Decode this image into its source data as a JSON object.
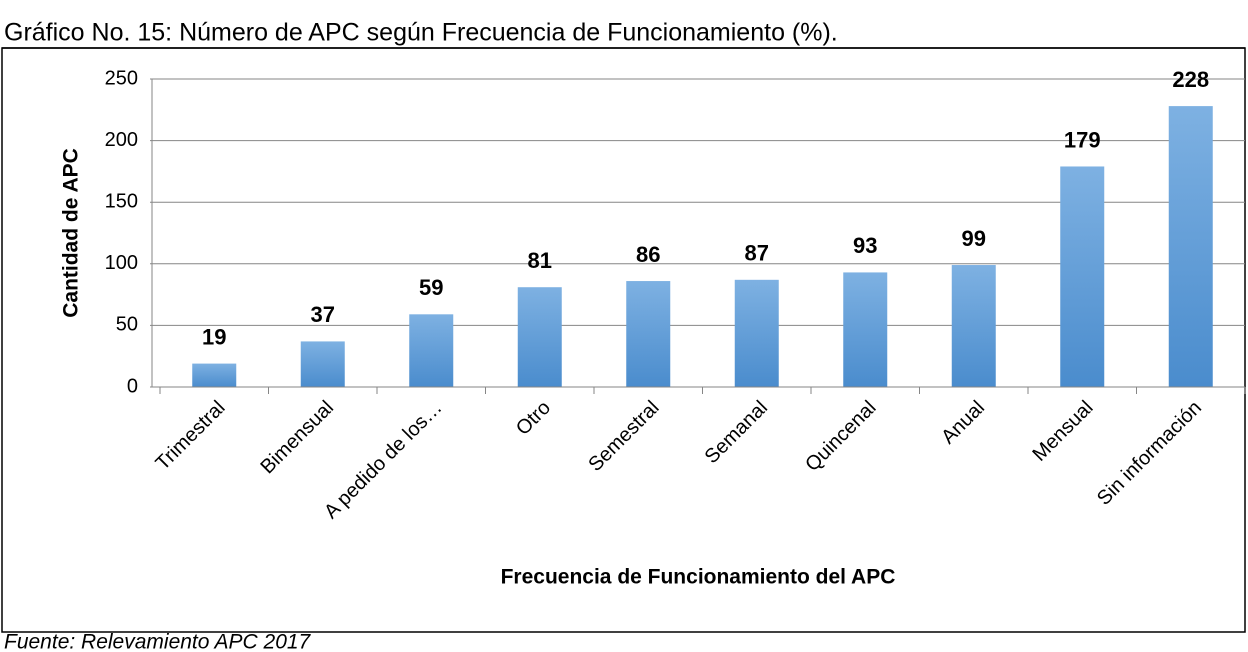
{
  "chart_data": {
    "type": "bar",
    "title": "Gráfico No. 15: Número de APC según Frecuencia de Funcionamiento (%).",
    "x_label": "Frecuencia de Funcionamiento del APC",
    "y_label": "Cantidad de APC",
    "source": "Fuente: Relevamiento APC 2017",
    "categories": [
      "Trimestral",
      "Bimensual",
      "A pedido de los…",
      "Otro",
      "Semestral",
      "Semanal",
      "Quincenal",
      "Anual",
      "Mensual",
      "Sin información"
    ],
    "values": [
      19,
      37,
      59,
      81,
      86,
      87,
      93,
      99,
      179,
      228
    ],
    "color": "#5b9bd5",
    "ylim": [
      0,
      250
    ],
    "yticks": [
      0,
      50,
      100,
      150,
      200,
      250
    ],
    "grid": true
  }
}
